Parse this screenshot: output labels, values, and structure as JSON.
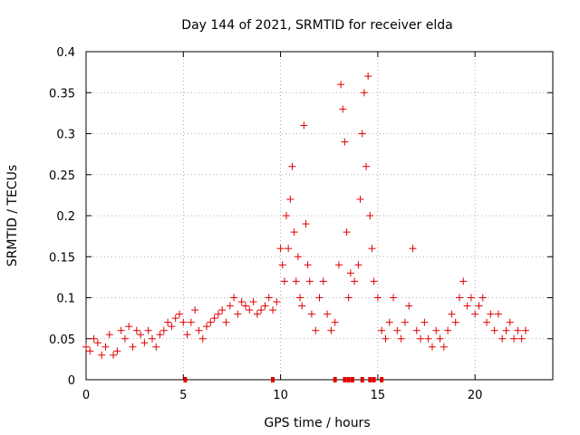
{
  "chart_data": {
    "type": "scatter",
    "title": "Day 144 of 2021, SRMTID for receiver elda",
    "xlabel": "GPS time / hours",
    "ylabel": "SRMTID / TECUs",
    "xlim": [
      0,
      24
    ],
    "ylim": [
      0,
      0.4
    ],
    "xticks": [
      0,
      5,
      10,
      15,
      20
    ],
    "yticks": [
      0,
      0.05,
      0.1,
      0.15,
      0.2,
      0.25,
      0.3,
      0.35,
      0.4
    ],
    "ytick_labels": [
      "0",
      "0.05",
      "0.1",
      "0.15",
      "0.2",
      "0.25",
      "0.3",
      "0.35",
      "0.4"
    ],
    "grid": true,
    "marker": "+",
    "color": "#e00000",
    "series": [
      {
        "name": "SRMTID",
        "x": [
          0.0,
          0.2,
          0.4,
          0.6,
          0.8,
          1.0,
          1.2,
          1.4,
          1.6,
          1.8,
          2.0,
          2.2,
          2.4,
          2.6,
          2.8,
          3.0,
          3.2,
          3.4,
          3.6,
          3.8,
          4.0,
          4.2,
          4.4,
          4.6,
          4.8,
          5.0,
          5.2,
          5.4,
          5.6,
          5.8,
          6.0,
          6.2,
          6.4,
          6.6,
          6.8,
          7.0,
          7.2,
          7.4,
          7.6,
          7.8,
          8.0,
          8.2,
          8.4,
          8.6,
          8.8,
          9.0,
          9.2,
          9.4,
          9.6,
          9.8,
          10.0,
          10.1,
          10.2,
          10.3,
          10.4,
          10.5,
          10.6,
          10.7,
          10.8,
          10.9,
          11.0,
          11.1,
          11.2,
          11.3,
          11.4,
          11.5,
          11.6,
          11.8,
          12.0,
          12.2,
          12.4,
          12.6,
          12.8,
          13.0,
          13.1,
          13.2,
          13.3,
          13.4,
          13.5,
          13.6,
          13.8,
          14.0,
          14.1,
          14.2,
          14.3,
          14.4,
          14.5,
          14.6,
          14.7,
          14.8,
          15.0,
          15.2,
          15.4,
          15.6,
          15.8,
          16.0,
          16.2,
          16.4,
          16.6,
          16.8,
          17.0,
          17.2,
          17.4,
          17.6,
          17.8,
          18.0,
          18.2,
          18.4,
          18.6,
          18.8,
          19.0,
          19.2,
          19.4,
          19.6,
          19.8,
          20.0,
          20.2,
          20.4,
          20.6,
          20.8,
          21.0,
          21.2,
          21.4,
          21.6,
          21.8,
          22.0,
          22.2,
          22.4,
          22.6
        ],
        "y": [
          0.04,
          0.035,
          0.05,
          0.045,
          0.03,
          0.04,
          0.055,
          0.03,
          0.035,
          0.06,
          0.05,
          0.065,
          0.04,
          0.06,
          0.055,
          0.045,
          0.06,
          0.05,
          0.04,
          0.055,
          0.06,
          0.07,
          0.065,
          0.075,
          0.08,
          0.07,
          0.055,
          0.07,
          0.085,
          0.06,
          0.05,
          0.065,
          0.07,
          0.075,
          0.08,
          0.085,
          0.07,
          0.09,
          0.1,
          0.08,
          0.095,
          0.09,
          0.085,
          0.095,
          0.08,
          0.085,
          0.09,
          0.1,
          0.085,
          0.095,
          0.16,
          0.14,
          0.12,
          0.2,
          0.16,
          0.22,
          0.26,
          0.18,
          0.12,
          0.15,
          0.1,
          0.09,
          0.31,
          0.19,
          0.14,
          0.12,
          0.08,
          0.06,
          0.1,
          0.12,
          0.08,
          0.06,
          0.07,
          0.14,
          0.36,
          0.33,
          0.29,
          0.18,
          0.1,
          0.13,
          0.12,
          0.14,
          0.22,
          0.3,
          0.35,
          0.26,
          0.37,
          0.2,
          0.16,
          0.12,
          0.1,
          0.06,
          0.05,
          0.07,
          0.1,
          0.06,
          0.05,
          0.07,
          0.09,
          0.16,
          0.06,
          0.05,
          0.07,
          0.05,
          0.04,
          0.06,
          0.05,
          0.04,
          0.06,
          0.08,
          0.07,
          0.1,
          0.12,
          0.09,
          0.1,
          0.08,
          0.09,
          0.1,
          0.07,
          0.08,
          0.06,
          0.08,
          0.05,
          0.06,
          0.07,
          0.05,
          0.06,
          0.05,
          0.06
        ]
      }
    ],
    "baseline_marks_x": [
      5.1,
      9.6,
      12.8,
      13.3,
      13.5,
      13.7,
      14.2,
      14.6,
      14.8,
      15.2
    ]
  }
}
